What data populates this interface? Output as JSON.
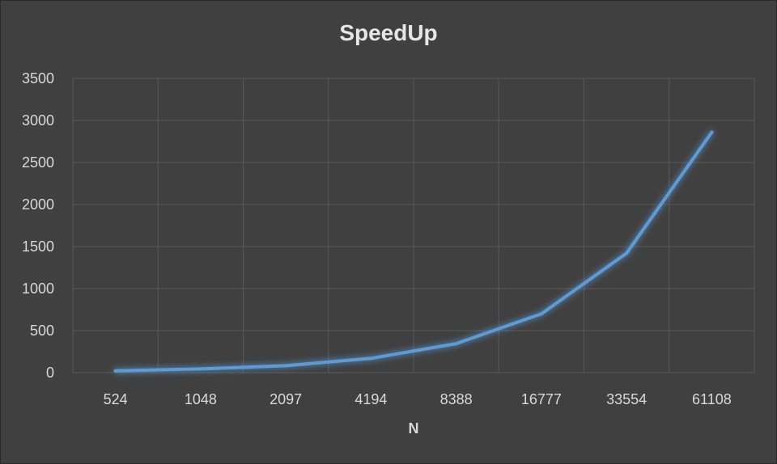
{
  "chart_data": {
    "type": "line",
    "title": "SpeedUp",
    "xlabel": "N",
    "ylabel": "",
    "categories": [
      "524",
      "1048",
      "2097",
      "4194",
      "8388",
      "16777",
      "33554",
      "61108"
    ],
    "series": [
      {
        "values": [
          22,
          44,
          83,
          170,
          345,
          700,
          1420,
          2860
        ]
      }
    ],
    "ylim": [
      0,
      3500
    ],
    "yticks": [
      0,
      500,
      1000,
      1500,
      2000,
      2500,
      3000,
      3500
    ],
    "grid": true,
    "line_color": "#5b9bd5",
    "background": "#404040",
    "gridline_color": "#595959",
    "text_color": "#d9d9d9"
  }
}
